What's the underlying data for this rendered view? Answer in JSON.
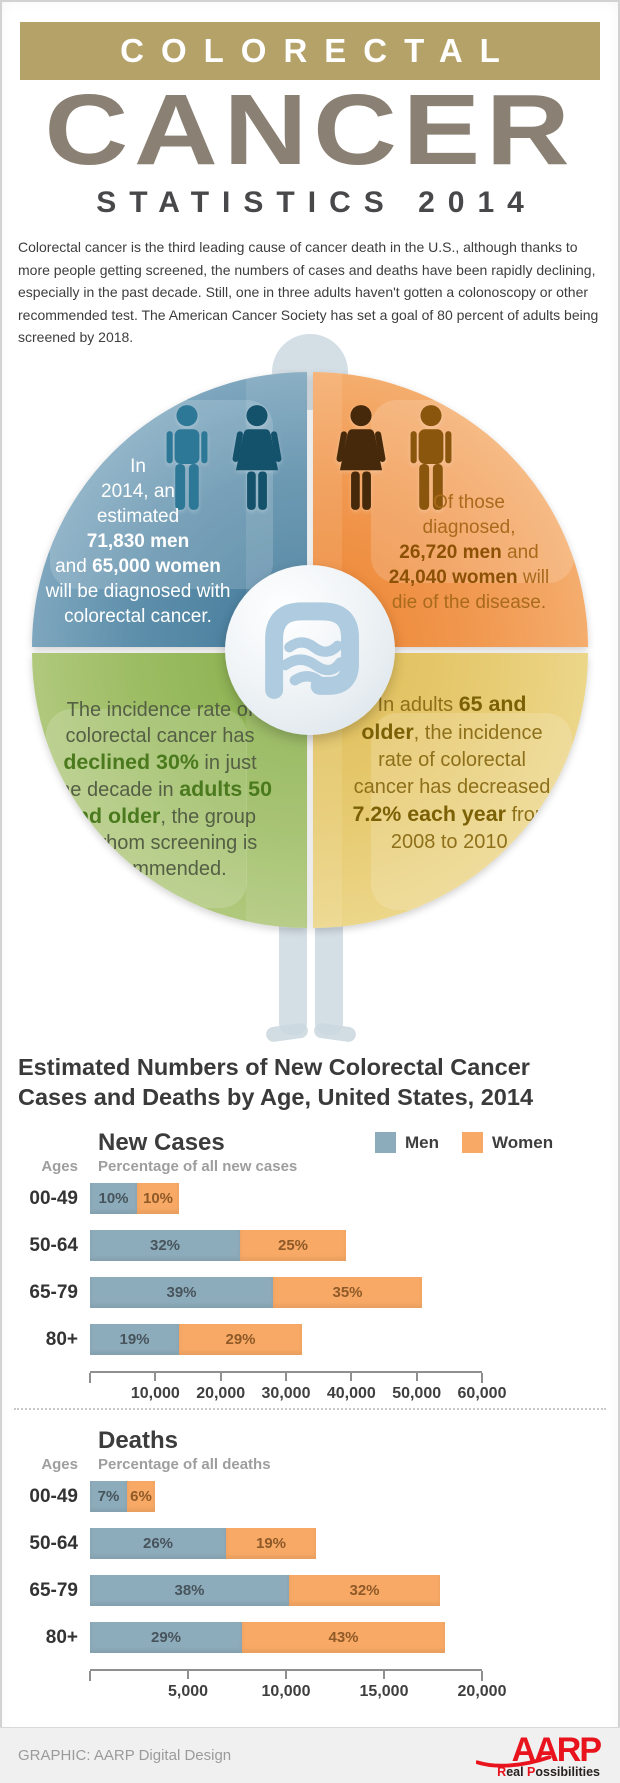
{
  "masthead": {
    "band_title": "COLORECTAL",
    "title": "CANCER",
    "subtitle": "STATISTICS 2014"
  },
  "intro": "Colorectal cancer is the third leading cause of cancer death in the U.S., although thanks to more people getting screened, the numbers of cases and deaths have been rapidly declining, especially in the past decade. Still, one in three adults haven't gotten a colonoscopy or other recommended test. The American Cancer Society has set a goal of 80 percent of adults being screened by 2018.",
  "quadrants": {
    "diagnosed": {
      "segments": [
        {
          "t": "In\n2014, an\nestimated\n"
        },
        {
          "t": "71,830 men",
          "b": true
        },
        {
          "t": "\nand "
        },
        {
          "t": "65,000 women",
          "b": true
        },
        {
          "t": "\nwill be diagnosed with\ncolorectal cancer."
        }
      ]
    },
    "deaths": {
      "segments": [
        {
          "t": "Of those\ndiagnosed,\n"
        },
        {
          "t": "26,720 men",
          "b": true
        },
        {
          "t": " and\n"
        },
        {
          "t": "24,040 women",
          "b": true
        },
        {
          "t": " will\ndie of the disease."
        }
      ]
    },
    "incidence_50": {
      "segments": [
        {
          "t": "The incidence rate of\ncolorectal cancer has\n"
        },
        {
          "t": "declined 30%",
          "b": true
        },
        {
          "t": " in just\none decade in "
        },
        {
          "t": "adults 50\nand older",
          "b": true
        },
        {
          "t": ", the group\nfor whom screening is\nrecommended."
        }
      ]
    },
    "incidence_65": {
      "segments": [
        {
          "t": "In adults "
        },
        {
          "t": "65 and\nolder",
          "b": true
        },
        {
          "t": ", the incidence\nrate of colorectal\ncancer has decreased\n"
        },
        {
          "t": "7.2% each year",
          "b": true
        },
        {
          "t": " from\n2008 to 2010."
        }
      ]
    }
  },
  "charts_heading": "Estimated Numbers of New Colorectal Cancer\nCases and Deaths by Age, United States, 2014",
  "legend": {
    "men": "Men",
    "women": "Women"
  },
  "colors": {
    "men_bar": "#8dacbb",
    "women_bar": "#f8a966",
    "band_tan": "#b5a269",
    "title_gray": "#8a8174",
    "aarp_red": "#e8131d",
    "quad_blue": "#5e8fab",
    "quad_orange": "#f19a52",
    "quad_green": "#9dbd64",
    "quad_gold": "#e7cb72"
  },
  "chart_data": [
    {
      "type": "bar",
      "orientation": "horizontal",
      "stacked": true,
      "title": "New Cases",
      "ages_label": "Ages",
      "subtitle": "Percentage of all new cases",
      "categories": [
        "00-49",
        "50-64",
        "65-79",
        "80+"
      ],
      "series": [
        {
          "name": "Men",
          "pct": [
            10,
            32,
            39,
            19
          ],
          "values": [
            7180,
            22990,
            28010,
            13650
          ]
        },
        {
          "name": "Women",
          "pct": [
            10,
            25,
            35,
            29
          ],
          "values": [
            6500,
            16250,
            22750,
            18850
          ]
        }
      ],
      "xlim": [
        0,
        60000
      ],
      "ticks": [
        {
          "v": 10000,
          "label": "10,000"
        },
        {
          "v": 20000,
          "label": "20,000"
        },
        {
          "v": 30000,
          "label": "30,000"
        },
        {
          "v": 40000,
          "label": "40,000"
        },
        {
          "v": 50000,
          "label": "50,000"
        },
        {
          "v": 60000,
          "label": "60,000"
        }
      ]
    },
    {
      "type": "bar",
      "orientation": "horizontal",
      "stacked": true,
      "title": "Deaths",
      "ages_label": "Ages",
      "subtitle": "Percentage of all deaths",
      "categories": [
        "00-49",
        "50-64",
        "65-79",
        "80+"
      ],
      "series": [
        {
          "name": "Men",
          "pct": [
            7,
            26,
            38,
            29
          ],
          "values": [
            1870,
            6950,
            10150,
            7750
          ]
        },
        {
          "name": "Women",
          "pct": [
            6,
            19,
            32,
            43
          ],
          "values": [
            1440,
            4570,
            7690,
            10340
          ]
        }
      ],
      "xlim": [
        0,
        20000
      ],
      "ticks": [
        {
          "v": 5000,
          "label": "5,000"
        },
        {
          "v": 10000,
          "label": "10,000"
        },
        {
          "v": 15000,
          "label": "15,000"
        },
        {
          "v": 20000,
          "label": "20,000"
        }
      ]
    }
  ],
  "footer": {
    "credit": "GRAPHIC: AARP Digital Design",
    "logo": "AARP",
    "tagline_segments": [
      {
        "t": "R",
        "red": true
      },
      {
        "t": "eal "
      },
      {
        "t": "P",
        "red": true
      },
      {
        "t": "ossibilities"
      }
    ]
  }
}
